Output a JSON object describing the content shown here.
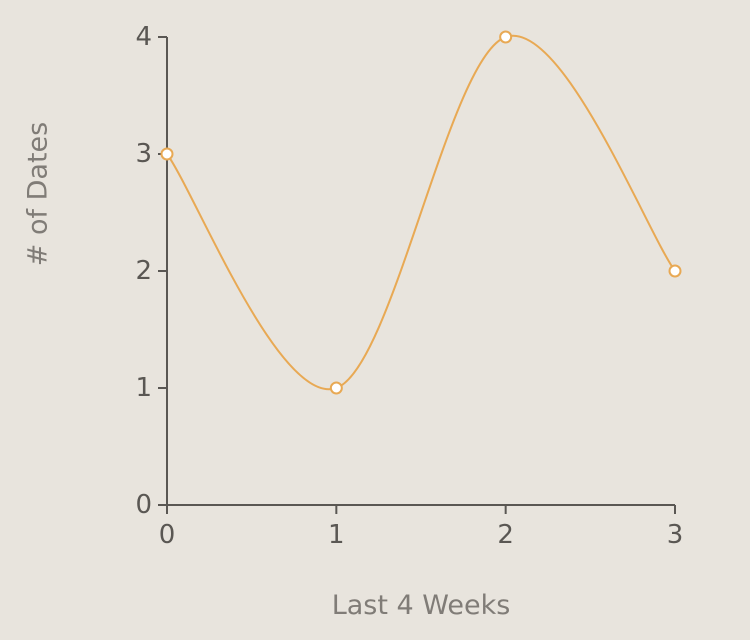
{
  "chart_data": {
    "type": "line",
    "x": [
      0,
      1,
      2,
      3
    ],
    "series": [
      {
        "values": [
          3,
          1,
          4,
          2
        ]
      }
    ],
    "xlabel": "Last 4 Weeks",
    "ylabel": "# of Dates",
    "xlim": [
      0,
      3
    ],
    "ylim": [
      0,
      4
    ],
    "xticks": [
      "0",
      "1",
      "2",
      "3"
    ],
    "yticks": [
      "0",
      "1",
      "2",
      "3",
      "4"
    ],
    "curve": "smooth",
    "grid": false,
    "legend": "none",
    "colors": {
      "background": "#e8e4dd",
      "line": "#e8a954",
      "marker_fill": "#ffffff",
      "axis": "#5a5753",
      "tick_text": "#5a5753",
      "axis_title": "#807c77"
    }
  }
}
